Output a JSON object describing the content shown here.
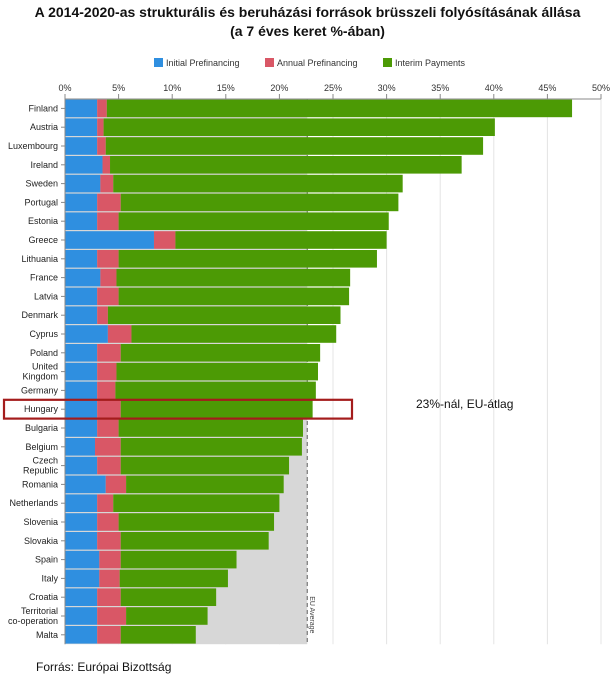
{
  "title_line1": "A 2014-2020-as strukturális és beruházási források brüsszeli folyósításának állása",
  "title_line2": "(a 7 éves keret %-ában)",
  "source": "Forrás: Európai Bizottság",
  "annotation": "23%-nál, EU-átlag",
  "chart_data": {
    "type": "bar",
    "orientation": "horizontal",
    "stacked": true,
    "xlim": [
      0,
      50
    ],
    "x_ticks": [
      "0%",
      "5%",
      "10%",
      "15%",
      "20%",
      "25%",
      "30%",
      "35%",
      "40%",
      "45%",
      "50%"
    ],
    "legend_position": "top",
    "categories": [
      "Finland",
      "Austria",
      "Luxembourg",
      "Ireland",
      "Sweden",
      "Portugal",
      "Estonia",
      "Greece",
      "Lithuania",
      "France",
      "Latvia",
      "Denmark",
      "Cyprus",
      "Poland",
      "United Kingdom",
      "Germany",
      "Hungary",
      "Bulgaria",
      "Belgium",
      "Czech Republic",
      "Romania",
      "Netherlands",
      "Slovenia",
      "Slovakia",
      "Spain",
      "Italy",
      "Croatia",
      "Territorial co-operation",
      "Malta"
    ],
    "highlight": "Hungary",
    "series": [
      {
        "name": "Initial Prefinancing",
        "color": "#2f8fe0",
        "values": [
          3.0,
          3.0,
          3.0,
          3.5,
          3.3,
          3.0,
          3.0,
          8.3,
          3.0,
          3.3,
          3.0,
          3.0,
          4.0,
          3.0,
          3.0,
          3.0,
          3.0,
          3.0,
          2.8,
          3.0,
          3.8,
          3.0,
          3.0,
          3.0,
          3.2,
          3.2,
          3.0,
          3.0,
          3.0
        ]
      },
      {
        "name": "Annual Prefinancing",
        "color": "#d95766",
        "values": [
          0.9,
          0.6,
          0.8,
          0.7,
          1.2,
          2.2,
          2.0,
          2.0,
          2.0,
          1.5,
          2.0,
          1.0,
          2.2,
          2.2,
          1.8,
          1.7,
          2.2,
          2.0,
          2.4,
          2.2,
          1.9,
          1.5,
          2.0,
          2.2,
          2.0,
          1.9,
          2.2,
          2.7,
          2.2
        ]
      },
      {
        "name": "Interim Payments",
        "color": "#4c9a05",
        "values": [
          43.4,
          36.5,
          35.2,
          32.8,
          27.0,
          25.9,
          25.2,
          19.7,
          24.1,
          21.8,
          21.5,
          21.7,
          19.1,
          18.6,
          18.8,
          18.7,
          17.9,
          17.2,
          16.9,
          15.7,
          14.7,
          15.5,
          14.5,
          13.8,
          10.8,
          10.1,
          8.9,
          7.6,
          7.0
        ]
      }
    ],
    "eu_average": 22.6,
    "eu_average_label": "EU Average"
  }
}
